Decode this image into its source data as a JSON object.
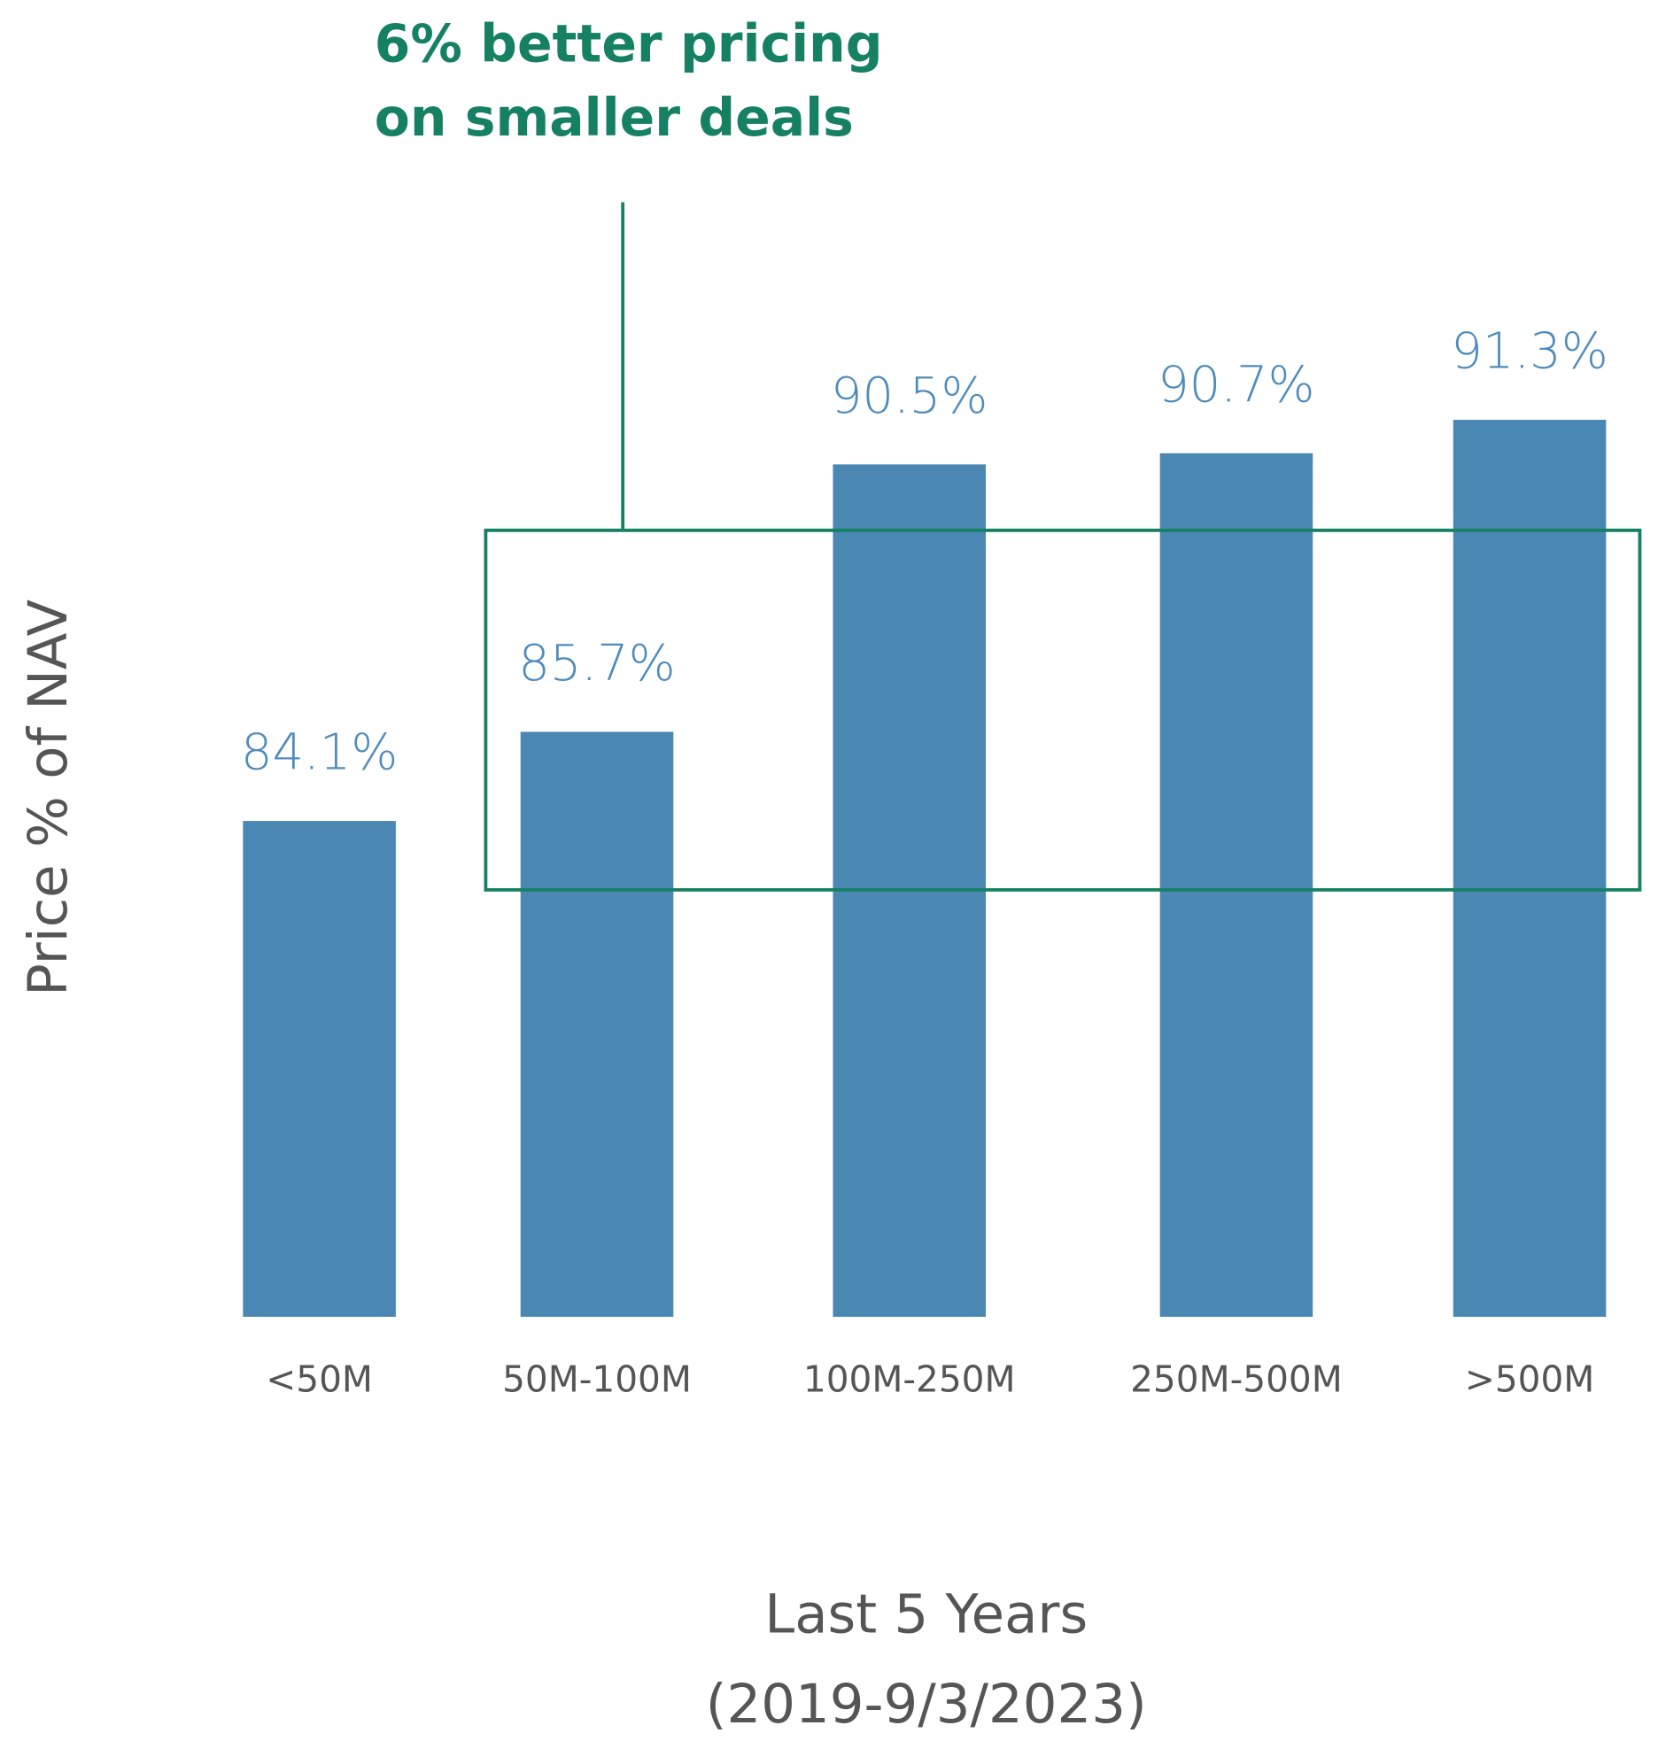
{
  "chart_data": {
    "type": "bar",
    "annotation": [
      "6% better pricing",
      "on smaller deals"
    ],
    "ylabel": "Price % of NAV",
    "xlabel": [
      "Last 5 Years",
      "(2019-9/3/2023)"
    ],
    "categories": [
      "<50M",
      "50M-100M",
      "100M-250M",
      "250M-500M",
      ">500M"
    ],
    "values": [
      84.1,
      85.7,
      90.5,
      90.7,
      91.3
    ],
    "value_labels": [
      "84.1%",
      "85.7%",
      "90.5%",
      "90.7%",
      "91.3%"
    ],
    "color": "#4a87b2",
    "ylim": [
      75.2,
      97
    ]
  }
}
